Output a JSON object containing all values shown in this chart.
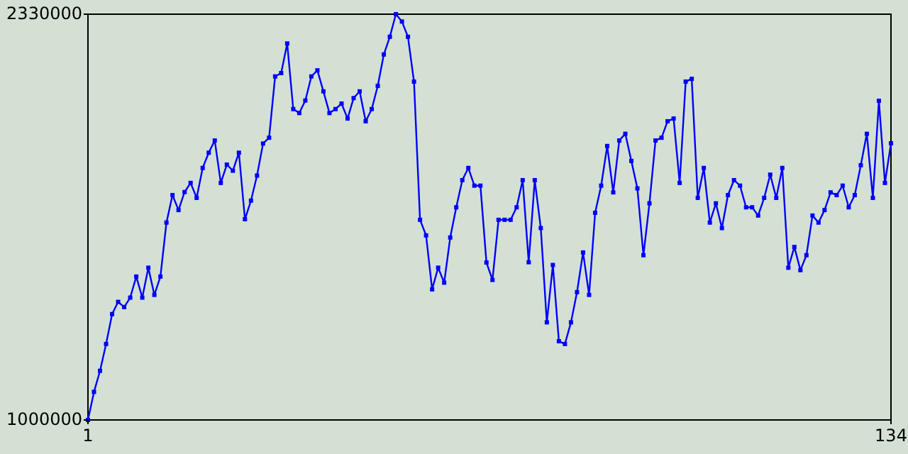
{
  "chart_data": {
    "type": "line",
    "marker": "square",
    "line_style": "solid",
    "x": [
      1,
      2,
      3,
      4,
      5,
      6,
      7,
      8,
      9,
      10,
      11,
      12,
      13,
      14,
      15,
      16,
      17,
      18,
      19,
      20,
      21,
      22,
      23,
      24,
      25,
      26,
      27,
      28,
      29,
      30,
      31,
      32,
      33,
      34,
      35,
      36,
      37,
      38,
      39,
      40,
      41,
      42,
      43,
      44,
      45,
      46,
      47,
      48,
      49,
      50,
      51,
      52,
      53,
      54,
      55,
      56,
      57,
      58,
      59,
      60,
      61,
      62,
      63,
      64,
      65,
      66,
      67,
      68,
      69,
      70,
      71,
      72,
      73,
      74,
      75,
      76,
      77,
      78,
      79,
      80,
      81,
      82,
      83,
      84,
      85,
      86,
      87,
      88,
      89,
      90,
      91,
      92,
      93,
      94,
      95,
      96,
      97,
      98,
      99,
      100,
      101,
      102,
      103,
      104,
      105,
      106,
      107,
      108,
      109,
      110,
      111,
      112,
      113,
      114,
      115,
      116,
      117,
      118,
      119,
      120,
      121,
      122,
      123,
      124,
      125,
      126,
      127,
      128,
      129,
      130,
      131,
      132,
      133,
      134
    ],
    "series": [
      {
        "color": "#0000ff",
        "values": [
          1000000,
          1092000,
          1161000,
          1249000,
          1347000,
          1387000,
          1370000,
          1401000,
          1470000,
          1401000,
          1499000,
          1410000,
          1470000,
          1647000,
          1737000,
          1688000,
          1747000,
          1777000,
          1728000,
          1826000,
          1876000,
          1916000,
          1777000,
          1837000,
          1817000,
          1876000,
          1658000,
          1719000,
          1801000,
          1906000,
          1925000,
          2126000,
          2137000,
          2234000,
          2019000,
          2006000,
          2047000,
          2126000,
          2146000,
          2077000,
          2006000,
          2019000,
          2037000,
          1988000,
          2055000,
          2077000,
          1979000,
          2019000,
          2095000,
          2198000,
          2256000,
          2330000,
          2306000,
          2256000,
          2109000,
          1656000,
          1605000,
          1428000,
          1499000,
          1450000,
          1598000,
          1697000,
          1786000,
          1826000,
          1768000,
          1768000,
          1516000,
          1459000,
          1656000,
          1656000,
          1656000,
          1697000,
          1786000,
          1517000,
          1786000,
          1629000,
          1320000,
          1508000,
          1258000,
          1249000,
          1320000,
          1419000,
          1549000,
          1410000,
          1679000,
          1768000,
          1898000,
          1746000,
          1916000,
          1938000,
          1849000,
          1759000,
          1540000,
          1710000,
          1916000,
          1925000,
          1979000,
          1988000,
          1777000,
          2109000,
          2118000,
          1728000,
          1826000,
          1647000,
          1710000,
          1629000,
          1737000,
          1786000,
          1768000,
          1697000,
          1697000,
          1670000,
          1728000,
          1804000,
          1728000,
          1826000,
          1499000,
          1567000,
          1491000,
          1540000,
          1670000,
          1647000,
          1688000,
          1746000,
          1737000,
          1768000,
          1697000,
          1737000,
          1835000,
          1938000,
          1728000,
          2046000,
          1777000,
          1907000
        ]
      }
    ],
    "xlim": [
      1,
      134
    ],
    "xticks": [
      1,
      134
    ],
    "ylim": [
      1000000,
      2330000
    ],
    "yticks": [
      1000000,
      2330000
    ]
  }
}
